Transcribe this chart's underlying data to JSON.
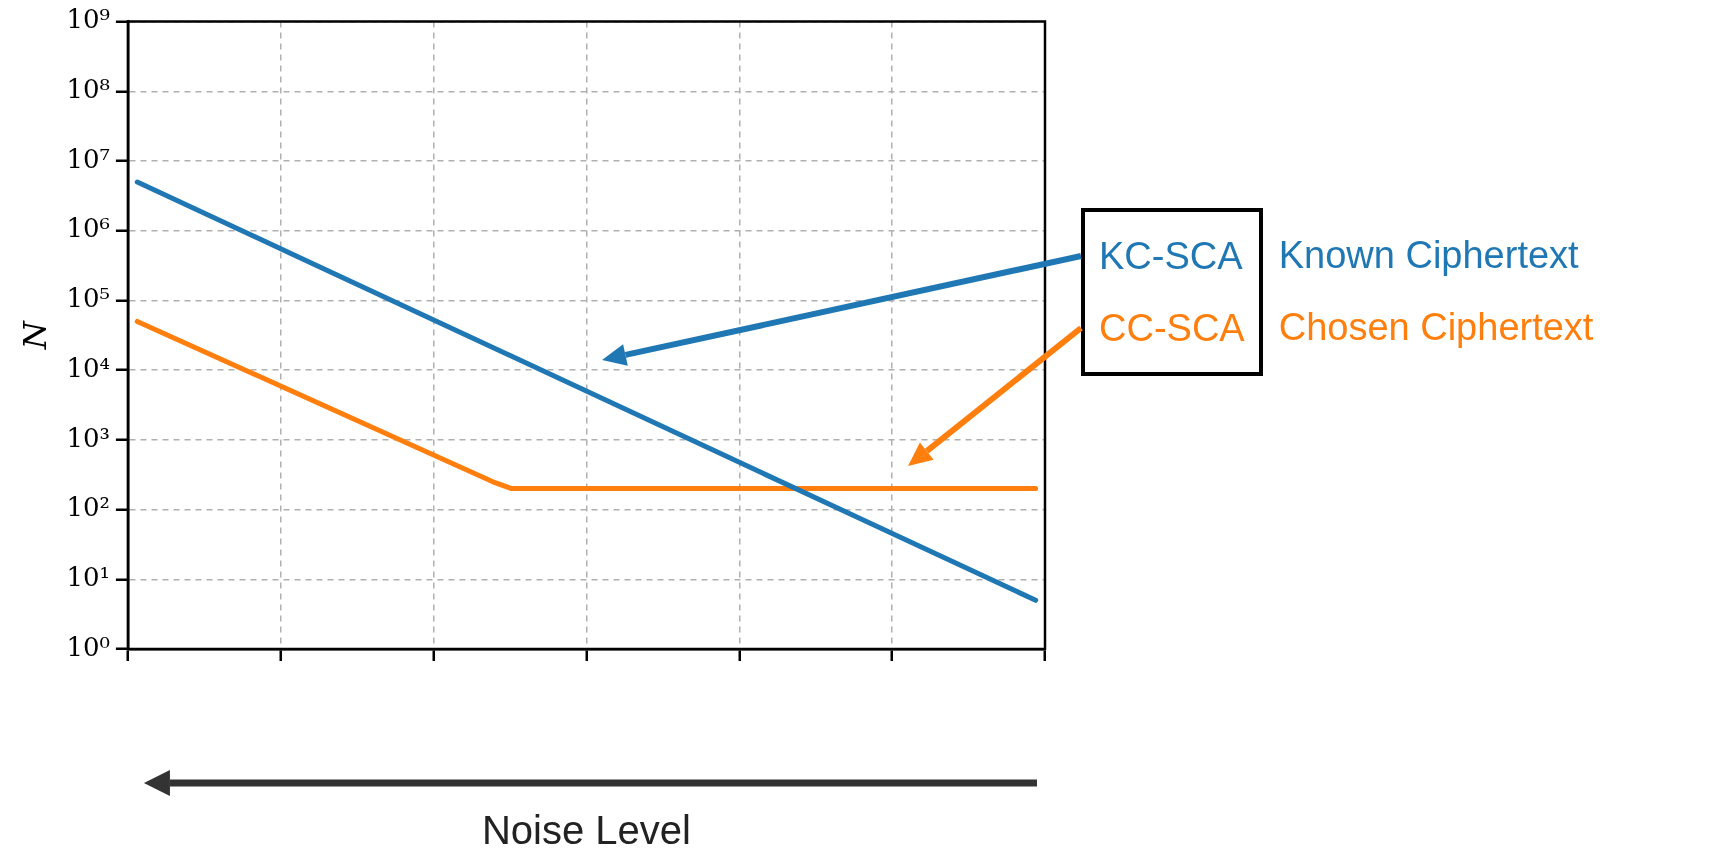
{
  "chart_data": {
    "type": "line",
    "xlabel": "Noise Level",
    "ylabel": "N",
    "categories": [
      null,
      null,
      null,
      null,
      null,
      null,
      null,
      null,
      null,
      null,
      null,
      null,
      null,
      null,
      null,
      null,
      null,
      null,
      null,
      null,
      null,
      null,
      null,
      null,
      null,
      null,
      null,
      null,
      null,
      null,
      null,
      null,
      null,
      null,
      null,
      null,
      null,
      null,
      null,
      null,
      null,
      null,
      null,
      null,
      null,
      null,
      null,
      null,
      null
    ],
    "series": [
      {
        "name": "KC-SCA",
        "color": "#1f77b4",
        "values": [
          5000000,
          null,
          null,
          null,
          null,
          null,
          null,
          null,
          null,
          null,
          null,
          null,
          null,
          null,
          null,
          null,
          null,
          null,
          null,
          null,
          null,
          null,
          null,
          null,
          null,
          null,
          null,
          null,
          null,
          null,
          null,
          null,
          null,
          null,
          null,
          null,
          null,
          null,
          null,
          null,
          null,
          null,
          null,
          null,
          null,
          null,
          null,
          null,
          5
        ]
      },
      {
        "name": "CC-SCA",
        "color": "#ff7f0e",
        "values": [
          50000,
          null,
          null,
          null,
          null,
          null,
          null,
          null,
          null,
          null,
          null,
          null,
          null,
          null,
          null,
          null,
          null,
          null,
          null,
          250,
          200,
          null,
          null,
          null,
          null,
          null,
          null,
          null,
          null,
          null,
          null,
          null,
          null,
          null,
          null,
          null,
          null,
          null,
          null,
          null,
          null,
          null,
          null,
          null,
          null,
          null,
          null,
          null,
          200
        ]
      }
    ],
    "annotations": [
      "Known Ciphertext",
      "Chosen Ciphertext"
    ],
    "log": "y",
    "ylim": [
      1,
      1000000000
    ],
    "yticks": [
      {
        "value": 1,
        "label": "10⁰"
      },
      {
        "value": 10,
        "label": "10¹"
      },
      {
        "value": 100,
        "label": "10²"
      },
      {
        "value": 1000,
        "label": "10³"
      },
      {
        "value": 10000,
        "label": "10⁴"
      },
      {
        "value": 100000,
        "label": "10⁵"
      },
      {
        "value": 1000000,
        "label": "10⁶"
      },
      {
        "value": 10000000,
        "label": "10⁷"
      },
      {
        "value": 100000000,
        "label": "10⁸"
      },
      {
        "value": 1000000000,
        "label": "10⁹"
      }
    ],
    "tick_labels": "y",
    "grid": true,
    "marker": "none",
    "line_style": "solid"
  }
}
